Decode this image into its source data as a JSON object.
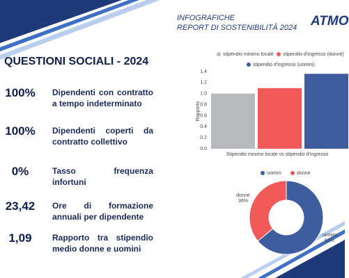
{
  "header": {
    "kicker": "INFOGRAFICHE",
    "report": "REPORT DI SOSTENIBILITÀ 2024",
    "logo": "ATMO"
  },
  "title": "QUESTIONI SOCIALI - 2024",
  "stats": [
    {
      "value": "100%",
      "label": "Dipendenti con contratto a tempo indeterminato"
    },
    {
      "value": "100%",
      "label": "Dipendenti coperti da contratto collettivo"
    },
    {
      "value": "0%",
      "label": "Tasso frequenza infortuni"
    },
    {
      "value": "23,42",
      "label": "Ore di formazione annuali per dipendente"
    },
    {
      "value": "1,09",
      "label": "Rapporto tra stipendio medio donne e uomini"
    }
  ],
  "chart_data": [
    {
      "type": "bar",
      "x_label": "Stipendio minimo locale vs stipendio d'ingresso",
      "y_label": "Rapporto",
      "categories": [
        null
      ],
      "series": [
        {
          "name": "stipendio minimo locale",
          "color": "#b8b9bd",
          "values": [
            1.0
          ]
        },
        {
          "name": "stipendio d'ingresso (donne)",
          "color": "#f25a5a",
          "values": [
            1.1
          ]
        },
        {
          "name": "stipendio d'ingresso (uomini)",
          "color": "#3d5d9e",
          "values": [
            1.36
          ]
        }
      ],
      "ylim": [
        0,
        1.4
      ],
      "yticks": [
        {
          "value": 0,
          "label": "0.0"
        },
        0.2,
        0.4,
        0.6,
        0.8,
        {
          "value": 1,
          "label": "1.0"
        },
        1.2,
        1.4
      ]
    },
    {
      "type": "pie",
      "categories": [
        "uomini",
        "donne"
      ],
      "values": [
        64,
        36
      ],
      "value_labels": [
        "64%",
        "36%"
      ],
      "colors": [
        "#3d5d9e",
        "#f25a5a"
      ]
    }
  ]
}
